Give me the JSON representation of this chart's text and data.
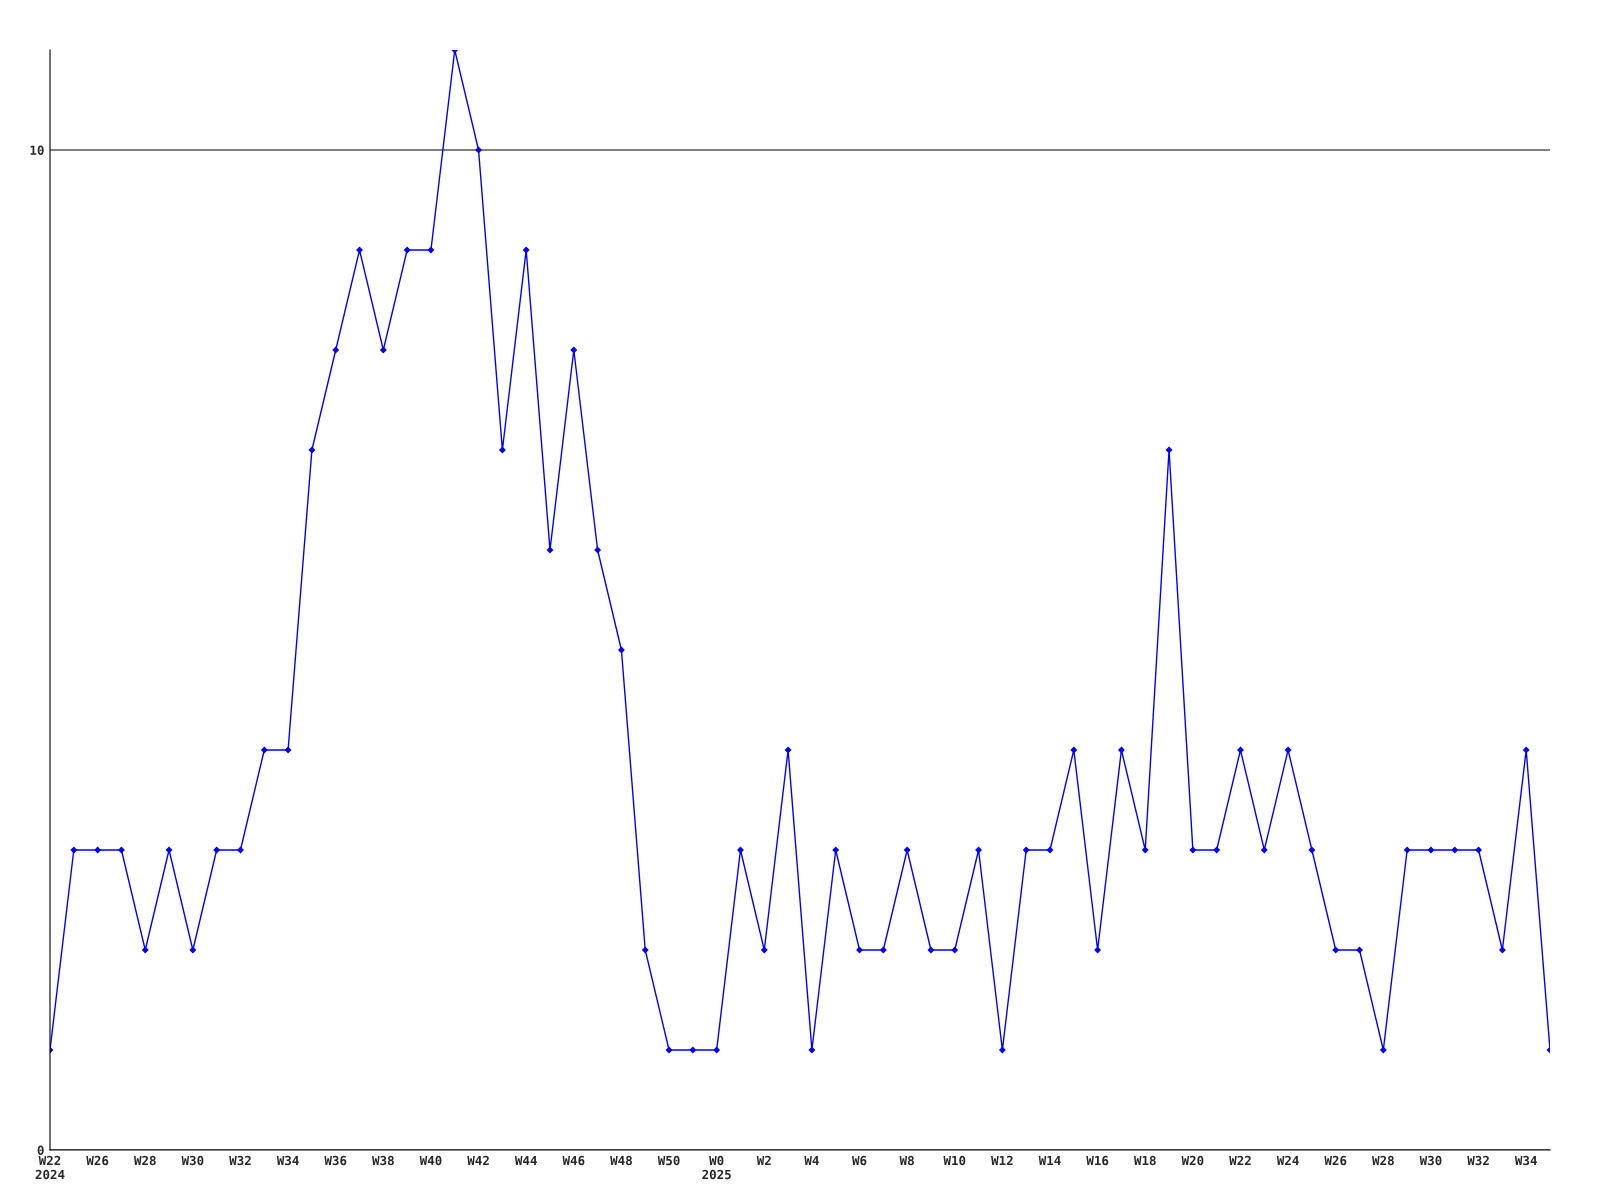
{
  "chart_data": {
    "type": "line",
    "categories": [
      "W22\n2024",
      null,
      "W26",
      null,
      "W28",
      null,
      "W30",
      null,
      "W32",
      null,
      "W34",
      null,
      "W36",
      null,
      "W38",
      null,
      "W40",
      null,
      "W42",
      null,
      "W44",
      null,
      "W46",
      null,
      "W48",
      null,
      "W50",
      null,
      "W0\n2025",
      null,
      "W2",
      null,
      "W4",
      null,
      "W6",
      null,
      "W8",
      null,
      "W10",
      null,
      "W12",
      null,
      "W14",
      null,
      "W16",
      null,
      "W18",
      null,
      "W20",
      null,
      "W22",
      null,
      "W24",
      null,
      "W26",
      null,
      "W28",
      null,
      "W30",
      null,
      "W32",
      null,
      "W34",
      null
    ],
    "series": [
      {
        "color": "#0000ff",
        "values": [
          1,
          3,
          3,
          3,
          2,
          3,
          2,
          3,
          3,
          4,
          4,
          7,
          8,
          9,
          8,
          9,
          9,
          11,
          10,
          7,
          9,
          6,
          8,
          6,
          5,
          2,
          1,
          1,
          1,
          3,
          2,
          4,
          1,
          3,
          2,
          2,
          3,
          2,
          2,
          3,
          1,
          3,
          3,
          4,
          2,
          4,
          3,
          7,
          3,
          3,
          4,
          3,
          4,
          3,
          2,
          2,
          1,
          3,
          3,
          3,
          3,
          2,
          4,
          1
        ]
      }
    ],
    "ylim": [
      0,
      11
    ],
    "yticks": [
      0,
      10
    ],
    "grid": "y",
    "marker": "diamond",
    "line_style": "solid"
  }
}
